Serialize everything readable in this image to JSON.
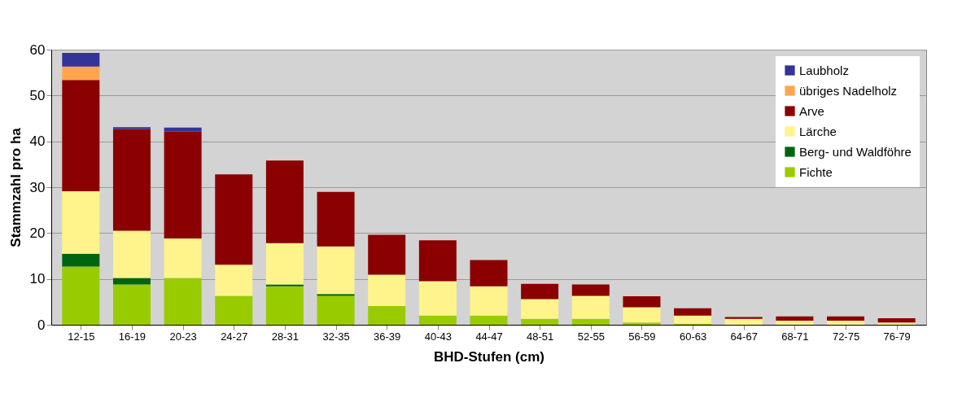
{
  "chart_data": {
    "type": "bar",
    "stacked": true,
    "xlabel": "BHD-Stufen (cm)",
    "ylabel": "Stammzahl pro ha",
    "categories": [
      "12-15",
      "16-19",
      "20-23",
      "24-27",
      "28-31",
      "32-35",
      "36-39",
      "40-43",
      "44-47",
      "48-51",
      "52-55",
      "56-59",
      "60-63",
      "64-67",
      "68-71",
      "72-75",
      "76-79"
    ],
    "series": [
      {
        "name": "Fichte",
        "color": "#99cc00",
        "values": [
          12.7,
          8.8,
          10.2,
          6.3,
          8.4,
          6.3,
          4.1,
          2.0,
          2.0,
          1.3,
          1.3,
          0.5,
          0.2,
          0,
          0,
          0,
          0
        ]
      },
      {
        "name": "Berg- und Waldföhre",
        "color": "#006411",
        "values": [
          2.8,
          1.4,
          0,
          0,
          0.4,
          0.4,
          0,
          0,
          0,
          0,
          0,
          0,
          0,
          0,
          0,
          0,
          0
        ]
      },
      {
        "name": "Lärche",
        "color": "#fff38c",
        "values": [
          13.6,
          10.3,
          8.6,
          6.8,
          9.0,
          10.4,
          6.8,
          7.5,
          6.4,
          4.3,
          5.0,
          3.3,
          1.8,
          1.3,
          0.9,
          0.9,
          0.5
        ]
      },
      {
        "name": "Arve",
        "color": "#8b0000",
        "values": [
          24.3,
          22.2,
          23.3,
          19.7,
          18.0,
          11.9,
          8.7,
          8.9,
          5.7,
          3.3,
          2.5,
          2.4,
          1.6,
          0.4,
          0.9,
          0.9,
          0.9
        ]
      },
      {
        "name": "übriges Nadelholz",
        "color": "#ffa64d",
        "values": [
          2.9,
          0,
          0,
          0,
          0,
          0,
          0,
          0,
          0,
          0,
          0,
          0,
          0,
          0,
          0,
          0,
          0
        ]
      },
      {
        "name": "Laubholz",
        "color": "#333399",
        "values": [
          3.0,
          0.4,
          0.9,
          0,
          0,
          0,
          0,
          0,
          0,
          0,
          0,
          0,
          0,
          0,
          0,
          0,
          0
        ]
      }
    ],
    "ylim": [
      0,
      60
    ],
    "yticks": [
      0,
      10,
      20,
      30,
      40,
      50,
      60
    ],
    "grid": "y",
    "legend": "top right"
  }
}
